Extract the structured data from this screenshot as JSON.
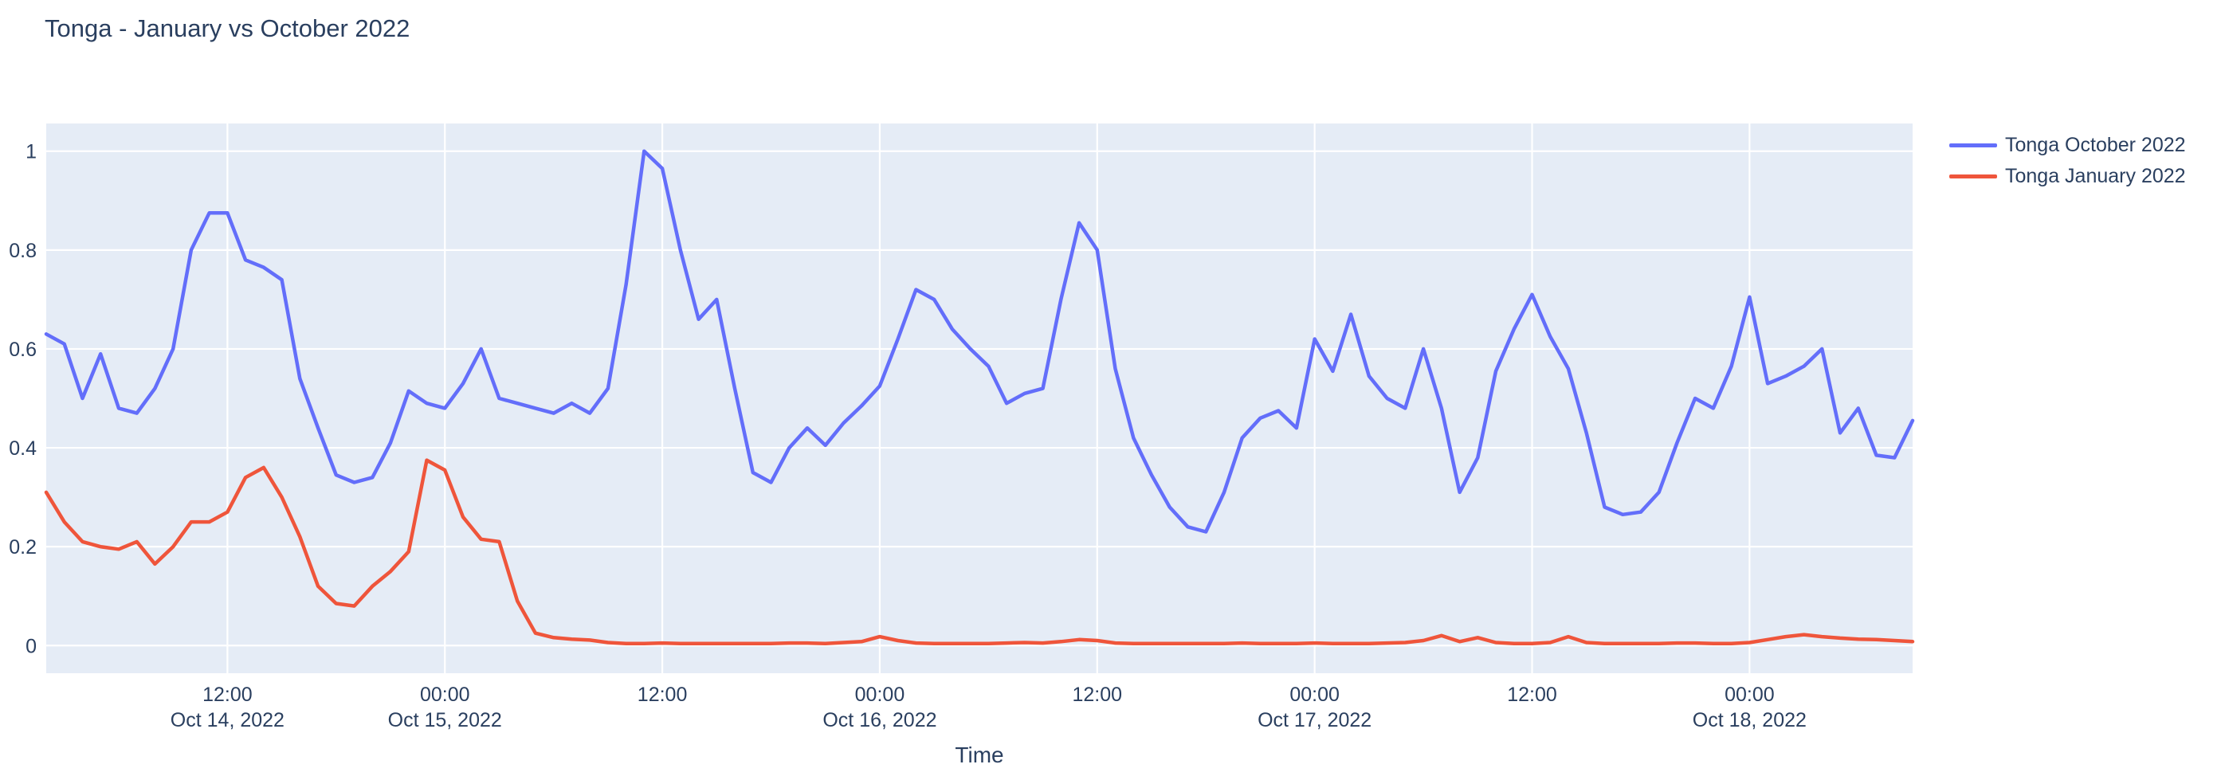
{
  "page": {
    "title": "Tonga - January vs October 2022"
  },
  "colors": {
    "font": "#2a3f5f",
    "plot_background": "#e5ecf6",
    "gridline": "#ffffff",
    "october_series": "#636efa",
    "january_series": "#ef553b",
    "page_background": "#ffffff"
  },
  "legend": {
    "items": [
      {
        "label": "Tonga October 2022",
        "color": "#636efa"
      },
      {
        "label": "Tonga January 2022",
        "color": "#ef553b"
      }
    ]
  },
  "xaxis_title": "Time",
  "chart_data": {
    "type": "line",
    "title": "Tonga - January vs October 2022",
    "xlabel": "Time",
    "ylabel": "",
    "grid": true,
    "legend_position": "right",
    "x_unit": "hours since Oct 14, 2022 00:00 (hourly samples, Oct 14 02:00 - Oct 18 09:00)",
    "xlim": [
      2,
      105
    ],
    "ylim": [
      -0.056,
      1.056
    ],
    "yticks": [
      {
        "v": 0,
        "label": "0"
      },
      {
        "v": 0.2,
        "label": "0.2"
      },
      {
        "v": 0.4,
        "label": "0.4"
      },
      {
        "v": 0.6,
        "label": "0.6"
      },
      {
        "v": 0.8,
        "label": "0.8"
      },
      {
        "v": 1,
        "label": "1"
      }
    ],
    "xticks": [
      {
        "x": 12,
        "time": "12:00",
        "date": "Oct 14, 2022"
      },
      {
        "x": 24,
        "time": "00:00",
        "date": "Oct 15, 2022"
      },
      {
        "x": 36,
        "time": "12:00",
        "date": ""
      },
      {
        "x": 48,
        "time": "00:00",
        "date": "Oct 16, 2022"
      },
      {
        "x": 60,
        "time": "12:00",
        "date": ""
      },
      {
        "x": 72,
        "time": "00:00",
        "date": "Oct 17, 2022"
      },
      {
        "x": 84,
        "time": "12:00",
        "date": ""
      },
      {
        "x": 96,
        "time": "00:00",
        "date": "Oct 18, 2022"
      }
    ],
    "x": [
      2,
      3,
      4,
      5,
      6,
      7,
      8,
      9,
      10,
      11,
      12,
      13,
      14,
      15,
      16,
      17,
      18,
      19,
      20,
      21,
      22,
      23,
      24,
      25,
      26,
      27,
      28,
      29,
      30,
      31,
      32,
      33,
      34,
      35,
      36,
      37,
      38,
      39,
      40,
      41,
      42,
      43,
      44,
      45,
      46,
      47,
      48,
      49,
      50,
      51,
      52,
      53,
      54,
      55,
      56,
      57,
      58,
      59,
      60,
      61,
      62,
      63,
      64,
      65,
      66,
      67,
      68,
      69,
      70,
      71,
      72,
      73,
      74,
      75,
      76,
      77,
      78,
      79,
      80,
      81,
      82,
      83,
      84,
      85,
      86,
      87,
      88,
      89,
      90,
      91,
      92,
      93,
      94,
      95,
      96,
      97,
      98,
      99,
      100,
      101,
      102,
      103,
      104,
      105
    ],
    "series": [
      {
        "name": "Tonga October 2022",
        "color": "#636efa",
        "values": [
          0.63,
          0.61,
          0.5,
          0.59,
          0.48,
          0.47,
          0.52,
          0.6,
          0.8,
          0.875,
          0.875,
          0.78,
          0.765,
          0.74,
          0.54,
          0.44,
          0.345,
          0.33,
          0.34,
          0.41,
          0.515,
          0.49,
          0.48,
          0.53,
          0.6,
          0.5,
          0.49,
          0.48,
          0.47,
          0.49,
          0.47,
          0.52,
          0.73,
          1.0,
          0.965,
          0.8,
          0.66,
          0.7,
          0.52,
          0.35,
          0.33,
          0.4,
          0.44,
          0.405,
          0.45,
          0.485,
          0.525,
          0.62,
          0.72,
          0.7,
          0.64,
          0.6,
          0.565,
          0.49,
          0.51,
          0.52,
          0.7,
          0.855,
          0.8,
          0.56,
          0.42,
          0.345,
          0.28,
          0.24,
          0.23,
          0.31,
          0.42,
          0.46,
          0.475,
          0.44,
          0.62,
          0.555,
          0.67,
          0.545,
          0.5,
          0.48,
          0.6,
          0.48,
          0.31,
          0.38,
          0.555,
          0.64,
          0.71,
          0.625,
          0.56,
          0.43,
          0.28,
          0.265,
          0.27,
          0.31,
          0.41,
          0.5,
          0.48,
          0.565,
          0.705,
          0.53,
          0.545,
          0.565,
          0.6,
          0.43,
          0.48,
          0.385,
          0.38,
          0.455
        ]
      },
      {
        "name": "Tonga January 2022",
        "color": "#ef553b",
        "values": [
          0.31,
          0.25,
          0.21,
          0.2,
          0.195,
          0.21,
          0.165,
          0.2,
          0.25,
          0.25,
          0.27,
          0.34,
          0.36,
          0.3,
          0.22,
          0.12,
          0.085,
          0.08,
          0.12,
          0.15,
          0.19,
          0.375,
          0.355,
          0.26,
          0.215,
          0.21,
          0.09,
          0.025,
          0.016,
          0.013,
          0.011,
          0.006,
          0.004,
          0.004,
          0.005,
          0.004,
          0.004,
          0.004,
          0.004,
          0.004,
          0.004,
          0.005,
          0.005,
          0.004,
          0.006,
          0.008,
          0.018,
          0.01,
          0.005,
          0.004,
          0.004,
          0.004,
          0.004,
          0.005,
          0.006,
          0.005,
          0.008,
          0.012,
          0.01,
          0.005,
          0.004,
          0.004,
          0.004,
          0.004,
          0.004,
          0.004,
          0.005,
          0.004,
          0.004,
          0.004,
          0.005,
          0.004,
          0.004,
          0.004,
          0.005,
          0.006,
          0.01,
          0.02,
          0.008,
          0.016,
          0.006,
          0.004,
          0.004,
          0.006,
          0.018,
          0.006,
          0.004,
          0.004,
          0.004,
          0.004,
          0.005,
          0.005,
          0.004,
          0.004,
          0.006,
          0.012,
          0.018,
          0.022,
          0.018,
          0.015,
          0.013,
          0.012,
          0.01,
          0.008
        ]
      }
    ]
  }
}
